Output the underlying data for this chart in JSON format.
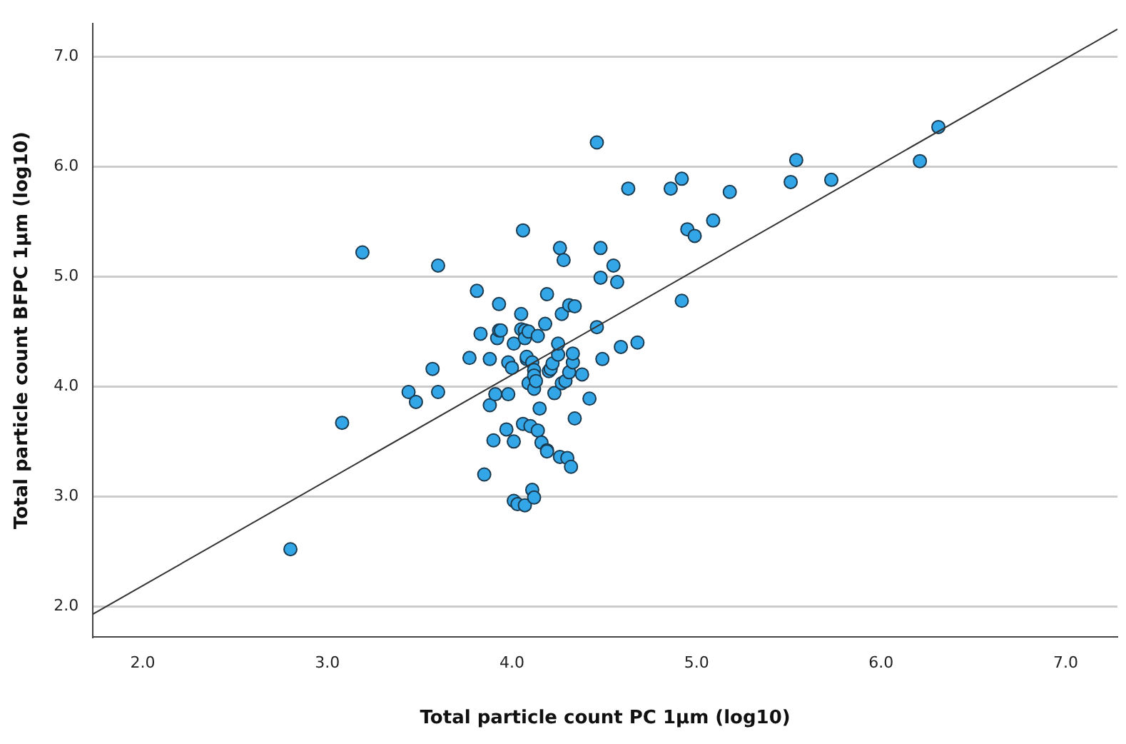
{
  "chart_data": {
    "type": "scatter",
    "xlabel": "Total particle count PC 1µm (log10)",
    "ylabel": "Total particle count BFPC 1µm (log10)",
    "xlim": [
      1.73,
      7.28
    ],
    "ylim": [
      1.72,
      7.3
    ],
    "xticks": [
      {
        "value": 2,
        "label": "2.0"
      },
      {
        "value": 3,
        "label": "3.0"
      },
      {
        "value": 4,
        "label": "4.0"
      },
      {
        "value": 5,
        "label": "5.0"
      },
      {
        "value": 6,
        "label": "6.0"
      },
      {
        "value": 7,
        "label": "7.0"
      }
    ],
    "yticks": [
      {
        "value": 2,
        "label": "2.0"
      },
      {
        "value": 3,
        "label": "3.0"
      },
      {
        "value": 4,
        "label": "4.0"
      },
      {
        "value": 5,
        "label": "5.0"
      },
      {
        "value": 6,
        "label": "6.0"
      },
      {
        "value": 7,
        "label": "7.0"
      }
    ],
    "grid": "y",
    "legend": false,
    "series": [
      {
        "type": "scatter",
        "marker": "circle",
        "color": "#33a6e8",
        "x": [
          2.8,
          3.08,
          3.19,
          3.44,
          3.48,
          3.57,
          3.6,
          3.6,
          3.77,
          3.81,
          3.83,
          3.85,
          3.88,
          3.88,
          3.9,
          3.91,
          3.92,
          3.93,
          3.93,
          3.94,
          3.97,
          3.98,
          3.98,
          4.0,
          4.01,
          4.01,
          4.01,
          4.03,
          4.05,
          4.05,
          4.06,
          4.06,
          4.07,
          4.07,
          4.07,
          4.08,
          4.08,
          4.09,
          4.09,
          4.1,
          4.11,
          4.11,
          4.12,
          4.12,
          4.12,
          4.12,
          4.13,
          4.14,
          4.14,
          4.15,
          4.16,
          4.18,
          4.19,
          4.19,
          4.19,
          4.2,
          4.21,
          4.22,
          4.23,
          4.25,
          4.25,
          4.26,
          4.26,
          4.27,
          4.27,
          4.28,
          4.29,
          4.3,
          4.31,
          4.31,
          4.32,
          4.33,
          4.33,
          4.34,
          4.34,
          4.38,
          4.42,
          4.46,
          4.46,
          4.48,
          4.48,
          4.49,
          4.55,
          4.57,
          4.59,
          4.63,
          4.68,
          4.86,
          4.92,
          4.92,
          4.95,
          4.99,
          5.09,
          5.18,
          5.51,
          5.54,
          5.73,
          6.21,
          6.31
        ],
        "values": [
          2.52,
          3.67,
          5.22,
          3.95,
          3.86,
          4.16,
          5.1,
          3.95,
          4.26,
          4.87,
          4.48,
          3.2,
          4.25,
          3.83,
          3.51,
          3.93,
          4.44,
          4.51,
          4.75,
          4.51,
          3.61,
          4.22,
          3.93,
          4.17,
          4.39,
          2.96,
          3.5,
          2.93,
          4.66,
          4.52,
          5.42,
          3.66,
          4.51,
          4.44,
          2.92,
          4.25,
          4.27,
          4.5,
          4.03,
          3.64,
          3.06,
          4.22,
          4.15,
          4.1,
          3.98,
          2.99,
          4.05,
          3.6,
          4.46,
          3.8,
          3.49,
          4.57,
          3.42,
          4.84,
          3.41,
          4.14,
          4.16,
          4.21,
          3.94,
          4.29,
          4.39,
          3.36,
          5.26,
          4.66,
          4.03,
          5.15,
          4.05,
          3.35,
          4.13,
          4.74,
          3.27,
          4.22,
          4.3,
          4.73,
          3.71,
          4.11,
          3.89,
          6.22,
          4.54,
          5.26,
          4.99,
          4.25,
          5.1,
          4.95,
          4.36,
          5.8,
          4.4,
          5.8,
          5.89,
          4.78,
          5.43,
          5.37,
          5.51,
          5.77,
          5.86,
          6.06,
          5.88,
          6.05,
          6.36
        ]
      },
      {
        "type": "line",
        "marker": "none",
        "color": "#333333",
        "x": [
          1.73,
          7.28
        ],
        "values": [
          1.93,
          7.25
        ]
      }
    ]
  }
}
